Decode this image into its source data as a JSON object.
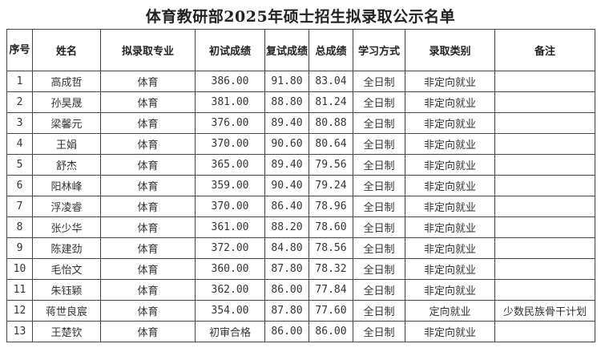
{
  "title": "体育教研部2025年硕士招生拟录取公示名单",
  "headers": [
    "序号",
    "姓名",
    "拟录取专业",
    "初试成绩",
    "复试成绩",
    "总成绩",
    "学习方式",
    "录取类别",
    "备注"
  ],
  "rows": [
    [
      "1",
      "高成哲",
      "体育",
      "386.00",
      "91.80",
      "83.04",
      "全日制",
      "非定向就业",
      ""
    ],
    [
      "2",
      "孙昊晟",
      "体育",
      "381.00",
      "88.80",
      "81.24",
      "全日制",
      "非定向就业",
      ""
    ],
    [
      "3",
      "梁馨元",
      "体育",
      "376.00",
      "89.40",
      "80.88",
      "全日制",
      "非定向就业",
      ""
    ],
    [
      "4",
      "王娟",
      "体育",
      "370.00",
      "90.60",
      "80.64",
      "全日制",
      "非定向就业",
      ""
    ],
    [
      "5",
      "舒杰",
      "体育",
      "365.00",
      "89.40",
      "79.56",
      "全日制",
      "非定向就业",
      ""
    ],
    [
      "6",
      "阳林峰",
      "体育",
      "359.00",
      "90.40",
      "79.24",
      "全日制",
      "非定向就业",
      ""
    ],
    [
      "7",
      "浮凌睿",
      "体育",
      "370.00",
      "86.40",
      "78.96",
      "全日制",
      "非定向就业",
      ""
    ],
    [
      "8",
      "张少华",
      "体育",
      "361.00",
      "88.20",
      "78.60",
      "全日制",
      "非定向就业",
      ""
    ],
    [
      "9",
      "陈建劲",
      "体育",
      "372.00",
      "84.80",
      "78.56",
      "全日制",
      "非定向就业",
      ""
    ],
    [
      "10",
      "毛怡文",
      "体育",
      "360.00",
      "87.80",
      "78.32",
      "全日制",
      "非定向就业",
      ""
    ],
    [
      "11",
      "朱钰颖",
      "体育",
      "362.00",
      "86.00",
      "77.84",
      "全日制",
      "非定向就业",
      ""
    ],
    [
      "12",
      "蒋世良宸",
      "体育",
      "354.00",
      "87.80",
      "77.60",
      "全日制",
      "定向就业",
      "少数民族骨干计划"
    ],
    [
      "13",
      "王楚钦",
      "体育",
      "初审合格",
      "86.00",
      "86.00",
      "全日制",
      "非定向就业",
      ""
    ]
  ]
}
